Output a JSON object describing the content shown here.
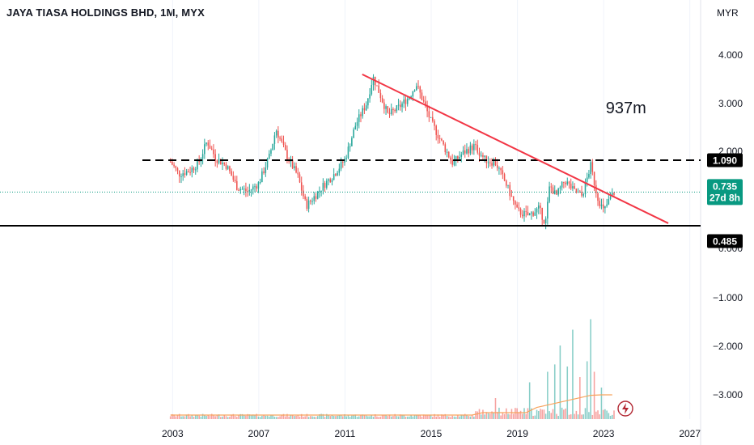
{
  "header": {
    "title": "JAYA TIASA HOLDINGS BHD, 1M, MYX"
  },
  "colors": {
    "up": "#26a69a",
    "down": "#ef5350",
    "trendline": "#f23645",
    "support_line": "#000000",
    "price_badge": "#089981",
    "volume_ma": "#f7a35c"
  },
  "chart_data": {
    "type": "candlestick",
    "currency_label": "MYR",
    "y_axis": {
      "scale": "log",
      "ticks": [
        "4.000",
        "3.000",
        "2.000",
        "1.000",
        "0.000",
        "−1.000",
        "−2.000",
        "−3.000"
      ]
    },
    "x_axis": {
      "range": [
        2002.5,
        2027.5
      ],
      "ticks": [
        "2003",
        "2007",
        "2011",
        "2015",
        "2019",
        "2023",
        "2027"
      ]
    },
    "price_path": [
      [
        2002.9,
        1.07
      ],
      [
        2003.3,
        0.92
      ],
      [
        2003.8,
        0.96
      ],
      [
        2004.2,
        1.05
      ],
      [
        2004.6,
        1.38
      ],
      [
        2005.0,
        1.12
      ],
      [
        2005.5,
        1.02
      ],
      [
        2006.0,
        0.78
      ],
      [
        2006.5,
        0.74
      ],
      [
        2007.0,
        0.82
      ],
      [
        2007.5,
        1.15
      ],
      [
        2007.8,
        1.6
      ],
      [
        2008.3,
        1.15
      ],
      [
        2008.8,
        0.9
      ],
      [
        2009.2,
        0.62
      ],
      [
        2009.6,
        0.7
      ],
      [
        2010.0,
        0.8
      ],
      [
        2010.5,
        0.92
      ],
      [
        2011.0,
        1.1
      ],
      [
        2011.5,
        1.7
      ],
      [
        2012.0,
        2.2
      ],
      [
        2012.3,
        3.05
      ],
      [
        2012.6,
        2.5
      ],
      [
        2013.0,
        1.9
      ],
      [
        2013.5,
        2.1
      ],
      [
        2014.0,
        2.4
      ],
      [
        2014.3,
        2.8
      ],
      [
        2014.6,
        2.3
      ],
      [
        2015.0,
        1.75
      ],
      [
        2015.5,
        1.35
      ],
      [
        2016.0,
        1.05
      ],
      [
        2016.5,
        1.2
      ],
      [
        2017.0,
        1.3
      ],
      [
        2017.5,
        1.1
      ],
      [
        2018.0,
        1.05
      ],
      [
        2018.5,
        0.8
      ],
      [
        2019.0,
        0.58
      ],
      [
        2019.5,
        0.55
      ],
      [
        2020.0,
        0.6
      ],
      [
        2020.3,
        0.5
      ],
      [
        2020.5,
        0.8
      ],
      [
        2020.8,
        0.7
      ],
      [
        2021.2,
        0.85
      ],
      [
        2021.6,
        0.75
      ],
      [
        2022.0,
        0.7
      ],
      [
        2022.4,
        1.02
      ],
      [
        2022.7,
        0.7
      ],
      [
        2023.0,
        0.58
      ],
      [
        2023.3,
        0.68
      ],
      [
        2023.5,
        0.735
      ]
    ],
    "horizontal_levels": [
      {
        "value": 1.09,
        "label": "1.090",
        "style": "dashed"
      },
      {
        "value": 0.485,
        "label": "0.485",
        "style": "solid"
      }
    ],
    "trendline": {
      "from": [
        2011.8,
        3.15
      ],
      "to": [
        2026.0,
        0.5
      ]
    },
    "annotations": [
      {
        "text": "937m",
        "x": 2023.1,
        "y": 1.95
      }
    ],
    "last_price": {
      "value": "0.735",
      "countdown": "27d 8h"
    },
    "volume_spikes": [
      [
        2018.0,
        0.2
      ],
      [
        2019.6,
        0.35
      ],
      [
        2020.4,
        0.45
      ],
      [
        2020.7,
        0.52
      ],
      [
        2021.0,
        0.7
      ],
      [
        2021.3,
        0.5
      ],
      [
        2021.6,
        0.85
      ],
      [
        2021.9,
        0.4
      ],
      [
        2022.2,
        0.55
      ],
      [
        2022.4,
        0.95
      ],
      [
        2022.6,
        0.45
      ],
      [
        2022.9,
        0.3
      ]
    ]
  }
}
